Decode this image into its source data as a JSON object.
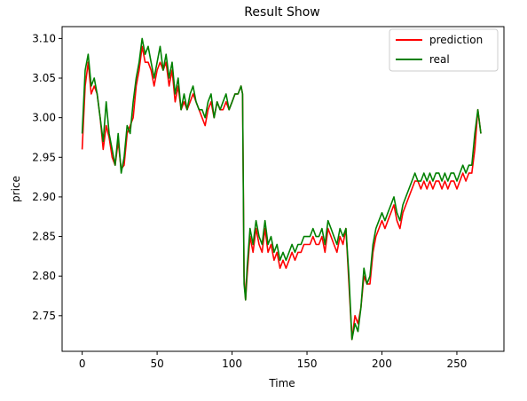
{
  "chart_data": {
    "type": "line",
    "title": "Result Show",
    "xlabel": "Time",
    "ylabel": "price",
    "xlim": [
      -13.4,
      281.4
    ],
    "ylim": [
      2.705,
      3.115
    ],
    "xticks": [
      0,
      50,
      100,
      150,
      200,
      250
    ],
    "yticks": [
      2.75,
      2.8,
      2.85,
      2.9,
      2.95,
      3.0,
      3.05,
      3.1
    ],
    "ytick_labels": [
      "2.75",
      "2.80",
      "2.85",
      "2.90",
      "2.95",
      "3.00",
      "3.05",
      "3.10"
    ],
    "grid": false,
    "legend_position": "upper right",
    "series": [
      {
        "name": "prediction",
        "color": "#ff0000",
        "points": [
          [
            0,
            2.96
          ],
          [
            2,
            3.04
          ],
          [
            4,
            3.07
          ],
          [
            6,
            3.03
          ],
          [
            8,
            3.04
          ],
          [
            10,
            3.03
          ],
          [
            12,
            3.0
          ],
          [
            14,
            2.96
          ],
          [
            16,
            2.99
          ],
          [
            18,
            2.975
          ],
          [
            20,
            2.95
          ],
          [
            22,
            2.94
          ],
          [
            24,
            2.97
          ],
          [
            26,
            2.935
          ],
          [
            28,
            2.94
          ],
          [
            30,
            2.98
          ],
          [
            32,
            2.99
          ],
          [
            34,
            3.0
          ],
          [
            36,
            3.04
          ],
          [
            38,
            3.06
          ],
          [
            40,
            3.09
          ],
          [
            42,
            3.07
          ],
          [
            44,
            3.07
          ],
          [
            46,
            3.06
          ],
          [
            48,
            3.04
          ],
          [
            50,
            3.06
          ],
          [
            52,
            3.07
          ],
          [
            54,
            3.06
          ],
          [
            56,
            3.07
          ],
          [
            58,
            3.04
          ],
          [
            60,
            3.06
          ],
          [
            62,
            3.02
          ],
          [
            64,
            3.04
          ],
          [
            66,
            3.01
          ],
          [
            68,
            3.02
          ],
          [
            70,
            3.01
          ],
          [
            72,
            3.02
          ],
          [
            74,
            3.03
          ],
          [
            76,
            3.02
          ],
          [
            78,
            3.01
          ],
          [
            80,
            3.0
          ],
          [
            82,
            2.99
          ],
          [
            84,
            3.01
          ],
          [
            86,
            3.02
          ],
          [
            88,
            3.0
          ],
          [
            90,
            3.02
          ],
          [
            92,
            3.01
          ],
          [
            94,
            3.01
          ],
          [
            96,
            3.02
          ],
          [
            98,
            3.01
          ],
          [
            100,
            3.02
          ],
          [
            102,
            3.03
          ],
          [
            104,
            3.03
          ],
          [
            106,
            3.04
          ],
          [
            107,
            3.03
          ],
          [
            108,
            2.8
          ],
          [
            109,
            2.77
          ],
          [
            110,
            2.8
          ],
          [
            112,
            2.85
          ],
          [
            114,
            2.83
          ],
          [
            116,
            2.86
          ],
          [
            118,
            2.84
          ],
          [
            120,
            2.83
          ],
          [
            122,
            2.86
          ],
          [
            124,
            2.83
          ],
          [
            126,
            2.84
          ],
          [
            128,
            2.82
          ],
          [
            130,
            2.83
          ],
          [
            132,
            2.81
          ],
          [
            134,
            2.82
          ],
          [
            136,
            2.81
          ],
          [
            138,
            2.82
          ],
          [
            140,
            2.83
          ],
          [
            142,
            2.82
          ],
          [
            144,
            2.83
          ],
          [
            146,
            2.83
          ],
          [
            148,
            2.84
          ],
          [
            150,
            2.84
          ],
          [
            152,
            2.84
          ],
          [
            154,
            2.85
          ],
          [
            156,
            2.84
          ],
          [
            158,
            2.84
          ],
          [
            160,
            2.85
          ],
          [
            162,
            2.83
          ],
          [
            164,
            2.86
          ],
          [
            166,
            2.85
          ],
          [
            168,
            2.84
          ],
          [
            170,
            2.83
          ],
          [
            172,
            2.85
          ],
          [
            174,
            2.84
          ],
          [
            176,
            2.86
          ],
          [
            178,
            2.79
          ],
          [
            180,
            2.72
          ],
          [
            182,
            2.75
          ],
          [
            184,
            2.74
          ],
          [
            186,
            2.76
          ],
          [
            188,
            2.8
          ],
          [
            190,
            2.79
          ],
          [
            192,
            2.79
          ],
          [
            194,
            2.83
          ],
          [
            196,
            2.85
          ],
          [
            198,
            2.86
          ],
          [
            200,
            2.87
          ],
          [
            202,
            2.86
          ],
          [
            204,
            2.87
          ],
          [
            206,
            2.88
          ],
          [
            208,
            2.89
          ],
          [
            210,
            2.87
          ],
          [
            212,
            2.86
          ],
          [
            214,
            2.88
          ],
          [
            216,
            2.89
          ],
          [
            218,
            2.9
          ],
          [
            220,
            2.91
          ],
          [
            222,
            2.92
          ],
          [
            224,
            2.92
          ],
          [
            226,
            2.91
          ],
          [
            228,
            2.92
          ],
          [
            230,
            2.91
          ],
          [
            232,
            2.92
          ],
          [
            234,
            2.91
          ],
          [
            236,
            2.92
          ],
          [
            238,
            2.92
          ],
          [
            240,
            2.91
          ],
          [
            242,
            2.92
          ],
          [
            244,
            2.91
          ],
          [
            246,
            2.92
          ],
          [
            248,
            2.92
          ],
          [
            250,
            2.91
          ],
          [
            252,
            2.92
          ],
          [
            254,
            2.93
          ],
          [
            256,
            2.92
          ],
          [
            258,
            2.93
          ],
          [
            260,
            2.93
          ],
          [
            262,
            2.96
          ],
          [
            264,
            3.01
          ],
          [
            266,
            2.98
          ]
        ]
      },
      {
        "name": "real",
        "color": "#008000",
        "points": [
          [
            0,
            2.98
          ],
          [
            2,
            3.06
          ],
          [
            4,
            3.08
          ],
          [
            6,
            3.04
          ],
          [
            8,
            3.05
          ],
          [
            10,
            3.03
          ],
          [
            12,
            3.0
          ],
          [
            14,
            2.97
          ],
          [
            16,
            3.02
          ],
          [
            18,
            2.98
          ],
          [
            20,
            2.96
          ],
          [
            22,
            2.94
          ],
          [
            24,
            2.98
          ],
          [
            26,
            2.93
          ],
          [
            28,
            2.95
          ],
          [
            30,
            2.99
          ],
          [
            32,
            2.98
          ],
          [
            34,
            3.02
          ],
          [
            36,
            3.05
          ],
          [
            38,
            3.07
          ],
          [
            40,
            3.1
          ],
          [
            42,
            3.08
          ],
          [
            44,
            3.09
          ],
          [
            46,
            3.07
          ],
          [
            48,
            3.05
          ],
          [
            50,
            3.07
          ],
          [
            52,
            3.09
          ],
          [
            54,
            3.06
          ],
          [
            56,
            3.08
          ],
          [
            58,
            3.05
          ],
          [
            60,
            3.07
          ],
          [
            62,
            3.03
          ],
          [
            64,
            3.05
          ],
          [
            66,
            3.01
          ],
          [
            68,
            3.03
          ],
          [
            70,
            3.01
          ],
          [
            72,
            3.03
          ],
          [
            74,
            3.04
          ],
          [
            76,
            3.02
          ],
          [
            78,
            3.01
          ],
          [
            80,
            3.01
          ],
          [
            82,
            3.0
          ],
          [
            84,
            3.02
          ],
          [
            86,
            3.03
          ],
          [
            88,
            3.0
          ],
          [
            90,
            3.02
          ],
          [
            92,
            3.01
          ],
          [
            94,
            3.02
          ],
          [
            96,
            3.03
          ],
          [
            98,
            3.01
          ],
          [
            100,
            3.02
          ],
          [
            102,
            3.03
          ],
          [
            104,
            3.03
          ],
          [
            106,
            3.04
          ],
          [
            107,
            3.03
          ],
          [
            108,
            2.79
          ],
          [
            109,
            2.77
          ],
          [
            110,
            2.81
          ],
          [
            112,
            2.86
          ],
          [
            114,
            2.84
          ],
          [
            116,
            2.87
          ],
          [
            118,
            2.85
          ],
          [
            120,
            2.84
          ],
          [
            122,
            2.87
          ],
          [
            124,
            2.84
          ],
          [
            126,
            2.85
          ],
          [
            128,
            2.83
          ],
          [
            130,
            2.84
          ],
          [
            132,
            2.82
          ],
          [
            134,
            2.83
          ],
          [
            136,
            2.82
          ],
          [
            138,
            2.83
          ],
          [
            140,
            2.84
          ],
          [
            142,
            2.83
          ],
          [
            144,
            2.84
          ],
          [
            146,
            2.84
          ],
          [
            148,
            2.85
          ],
          [
            150,
            2.85
          ],
          [
            152,
            2.85
          ],
          [
            154,
            2.86
          ],
          [
            156,
            2.85
          ],
          [
            158,
            2.85
          ],
          [
            160,
            2.86
          ],
          [
            162,
            2.84
          ],
          [
            164,
            2.87
          ],
          [
            166,
            2.86
          ],
          [
            168,
            2.85
          ],
          [
            170,
            2.84
          ],
          [
            172,
            2.86
          ],
          [
            174,
            2.85
          ],
          [
            176,
            2.86
          ],
          [
            178,
            2.8
          ],
          [
            180,
            2.72
          ],
          [
            182,
            2.74
          ],
          [
            184,
            2.73
          ],
          [
            186,
            2.76
          ],
          [
            188,
            2.81
          ],
          [
            190,
            2.79
          ],
          [
            192,
            2.8
          ],
          [
            194,
            2.84
          ],
          [
            196,
            2.86
          ],
          [
            198,
            2.87
          ],
          [
            200,
            2.88
          ],
          [
            202,
            2.87
          ],
          [
            204,
            2.88
          ],
          [
            206,
            2.89
          ],
          [
            208,
            2.9
          ],
          [
            210,
            2.88
          ],
          [
            212,
            2.87
          ],
          [
            214,
            2.89
          ],
          [
            216,
            2.9
          ],
          [
            218,
            2.91
          ],
          [
            220,
            2.92
          ],
          [
            222,
            2.93
          ],
          [
            224,
            2.92
          ],
          [
            226,
            2.92
          ],
          [
            228,
            2.93
          ],
          [
            230,
            2.92
          ],
          [
            232,
            2.93
          ],
          [
            234,
            2.92
          ],
          [
            236,
            2.93
          ],
          [
            238,
            2.93
          ],
          [
            240,
            2.92
          ],
          [
            242,
            2.93
          ],
          [
            244,
            2.92
          ],
          [
            246,
            2.93
          ],
          [
            248,
            2.93
          ],
          [
            250,
            2.92
          ],
          [
            252,
            2.93
          ],
          [
            254,
            2.94
          ],
          [
            256,
            2.93
          ],
          [
            258,
            2.94
          ],
          [
            260,
            2.94
          ],
          [
            262,
            2.98
          ],
          [
            264,
            3.01
          ],
          [
            266,
            2.98
          ]
        ]
      }
    ]
  }
}
